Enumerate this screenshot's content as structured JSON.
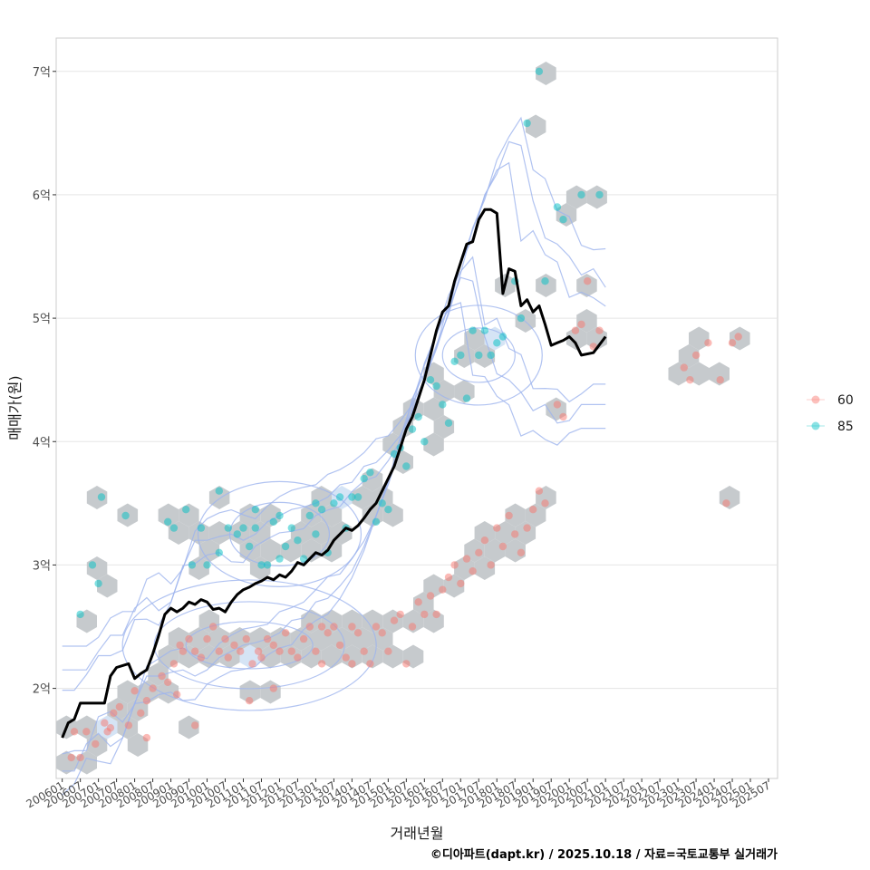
{
  "chart_data": {
    "type": "scatter",
    "xlabel": "거래년월",
    "ylabel": "매매가(원)",
    "caption": "©디아파트(dapt.kr) / 2025.10.18 / 자료=국토교통부 실거래가",
    "x_tick_labels": [
      "200601",
      "200607",
      "200701",
      "200707",
      "200801",
      "200807",
      "200901",
      "200907",
      "201001",
      "201007",
      "201101",
      "201107",
      "201201",
      "201207",
      "201301",
      "201307",
      "201401",
      "201407",
      "201501",
      "201507",
      "201601",
      "201607",
      "201701",
      "201707",
      "201801",
      "201807",
      "201901",
      "201907",
      "202001",
      "202007",
      "202101",
      "202107",
      "202201",
      "202207",
      "202301",
      "202307",
      "202401",
      "202407",
      "202501",
      "202507"
    ],
    "y_ticks": [
      {
        "value": 2,
        "label": "2억"
      },
      {
        "value": 3,
        "label": "3억"
      },
      {
        "value": 4,
        "label": "4억"
      },
      {
        "value": 5,
        "label": "5억"
      },
      {
        "value": 6,
        "label": "6억"
      },
      {
        "value": 7,
        "label": "7억"
      }
    ],
    "x_range_months": [
      -2,
      237
    ],
    "ylim": [
      1.27,
      7.27
    ],
    "y_unit": "억",
    "legend": [
      {
        "name": "60",
        "color": "#F8766D"
      },
      {
        "name": "85",
        "color": "#00BFC4"
      }
    ],
    "legend_position": "right",
    "colors": {
      "area_60": "#F8766D",
      "area_85": "#00BFC4",
      "trend": "#000000",
      "hex": "#c8cbcf",
      "contour": "#9db4ee"
    },
    "series": [
      {
        "name": "60",
        "type": "scatter",
        "points": [
          [
            3,
            1.44
          ],
          [
            4,
            1.65
          ],
          [
            6,
            1.44
          ],
          [
            8,
            1.65
          ],
          [
            11,
            1.55
          ],
          [
            14,
            1.72
          ],
          [
            15,
            1.65
          ],
          [
            17,
            1.8
          ],
          [
            19,
            1.85
          ],
          [
            22,
            1.7
          ],
          [
            24,
            1.98
          ],
          [
            26,
            1.8
          ],
          [
            28,
            1.9
          ],
          [
            30,
            2.0
          ],
          [
            33,
            2.1
          ],
          [
            35,
            2.05
          ],
          [
            37,
            2.2
          ],
          [
            39,
            2.35
          ],
          [
            40,
            2.3
          ],
          [
            42,
            2.4
          ],
          [
            44,
            2.3
          ],
          [
            46,
            2.25
          ],
          [
            48,
            2.4
          ],
          [
            50,
            2.5
          ],
          [
            52,
            2.3
          ],
          [
            54,
            2.4
          ],
          [
            55,
            2.25
          ],
          [
            57,
            2.35
          ],
          [
            59,
            2.3
          ],
          [
            61,
            2.4
          ],
          [
            63,
            2.2
          ],
          [
            65,
            2.3
          ],
          [
            66,
            2.25
          ],
          [
            68,
            2.4
          ],
          [
            70,
            2.35
          ],
          [
            72,
            2.3
          ],
          [
            74,
            2.45
          ],
          [
            76,
            2.3
          ],
          [
            78,
            2.25
          ],
          [
            80,
            2.4
          ],
          [
            82,
            2.5
          ],
          [
            84,
            2.3
          ],
          [
            86,
            2.2
          ],
          [
            88,
            2.45
          ],
          [
            90,
            2.5
          ],
          [
            92,
            2.35
          ],
          [
            94,
            2.25
          ],
          [
            96,
            2.5
          ],
          [
            98,
            2.45
          ],
          [
            100,
            2.3
          ],
          [
            102,
            2.2
          ],
          [
            104,
            2.5
          ],
          [
            106,
            2.45
          ],
          [
            108,
            2.3
          ],
          [
            110,
            2.55
          ],
          [
            112,
            2.6
          ],
          [
            114,
            2.2
          ],
          [
            116,
            2.5
          ],
          [
            118,
            2.7
          ],
          [
            122,
            2.75
          ],
          [
            124,
            2.6
          ],
          [
            126,
            2.8
          ],
          [
            128,
            2.9
          ],
          [
            130,
            3.0
          ],
          [
            132,
            2.85
          ],
          [
            134,
            3.05
          ],
          [
            136,
            2.95
          ],
          [
            138,
            3.1
          ],
          [
            140,
            3.2
          ],
          [
            142,
            3.0
          ],
          [
            144,
            3.3
          ],
          [
            146,
            3.15
          ],
          [
            148,
            3.4
          ],
          [
            150,
            3.25
          ],
          [
            152,
            3.1
          ],
          [
            154,
            3.3
          ],
          [
            156,
            3.45
          ],
          [
            158,
            3.6
          ],
          [
            160,
            3.5
          ],
          [
            164,
            4.3
          ],
          [
            166,
            4.2
          ],
          [
            170,
            4.9
          ],
          [
            172,
            4.95
          ],
          [
            174,
            5.3
          ],
          [
            178,
            4.9
          ],
          [
            206,
            4.6
          ],
          [
            208,
            4.5
          ],
          [
            210,
            4.7
          ],
          [
            214,
            4.8
          ],
          [
            218,
            4.5
          ],
          [
            220,
            3.5
          ],
          [
            222,
            4.8
          ],
          [
            224,
            4.85
          ],
          [
            44,
            1.7
          ],
          [
            62,
            1.9
          ],
          [
            70,
            2.0
          ],
          [
            38,
            1.95
          ],
          [
            28,
            1.6
          ],
          [
            16,
            1.68
          ],
          [
            120,
            2.6
          ],
          [
            96,
            2.2
          ],
          [
            86,
            2.5
          ],
          [
            176,
            4.77
          ]
        ]
      },
      {
        "name": "85",
        "type": "scatter",
        "points": [
          [
            6,
            2.6
          ],
          [
            10,
            3.0
          ],
          [
            12,
            2.85
          ],
          [
            13,
            3.55
          ],
          [
            21,
            3.4
          ],
          [
            35,
            3.35
          ],
          [
            37,
            3.3
          ],
          [
            41,
            3.45
          ],
          [
            43,
            3.0
          ],
          [
            46,
            3.3
          ],
          [
            52,
            3.1
          ],
          [
            55,
            3.3
          ],
          [
            58,
            3.25
          ],
          [
            60,
            3.3
          ],
          [
            62,
            3.15
          ],
          [
            64,
            3.3
          ],
          [
            68,
            3.0
          ],
          [
            70,
            3.35
          ],
          [
            72,
            3.4
          ],
          [
            74,
            3.15
          ],
          [
            76,
            3.3
          ],
          [
            78,
            3.2
          ],
          [
            80,
            3.05
          ],
          [
            82,
            3.4
          ],
          [
            84,
            3.25
          ],
          [
            86,
            3.45
          ],
          [
            88,
            3.1
          ],
          [
            90,
            3.5
          ],
          [
            92,
            3.55
          ],
          [
            94,
            3.3
          ],
          [
            96,
            3.55
          ],
          [
            100,
            3.7
          ],
          [
            102,
            3.75
          ],
          [
            106,
            3.5
          ],
          [
            110,
            3.9
          ],
          [
            112,
            3.95
          ],
          [
            114,
            3.8
          ],
          [
            116,
            4.1
          ],
          [
            118,
            4.2
          ],
          [
            122,
            4.5
          ],
          [
            124,
            4.45
          ],
          [
            126,
            4.3
          ],
          [
            130,
            4.65
          ],
          [
            132,
            4.7
          ],
          [
            134,
            4.35
          ],
          [
            136,
            4.9
          ],
          [
            138,
            4.7
          ],
          [
            140,
            4.9
          ],
          [
            142,
            4.7
          ],
          [
            144,
            4.8
          ],
          [
            146,
            4.85
          ],
          [
            150,
            5.3
          ],
          [
            152,
            5.0
          ],
          [
            154,
            6.58
          ],
          [
            158,
            7.0
          ],
          [
            164,
            5.9
          ],
          [
            166,
            5.8
          ],
          [
            172,
            6.0
          ],
          [
            178,
            6.0
          ],
          [
            64,
            3.45
          ],
          [
            66,
            3.0
          ],
          [
            52,
            3.6
          ],
          [
            48,
            3.0
          ],
          [
            104,
            3.35
          ],
          [
            108,
            3.45
          ],
          [
            120,
            4.0
          ],
          [
            128,
            4.15
          ],
          [
            160,
            5.3
          ],
          [
            84,
            3.5
          ],
          [
            98,
            3.55
          ],
          [
            72,
            3.05
          ]
        ]
      },
      {
        "name": "median trend",
        "type": "line",
        "points": [
          [
            0,
            1.6
          ],
          [
            2,
            1.72
          ],
          [
            4,
            1.75
          ],
          [
            6,
            1.88
          ],
          [
            10,
            1.88
          ],
          [
            14,
            1.88
          ],
          [
            16,
            2.1
          ],
          [
            18,
            2.17
          ],
          [
            22,
            2.2
          ],
          [
            24,
            2.08
          ],
          [
            26,
            2.12
          ],
          [
            28,
            2.15
          ],
          [
            30,
            2.28
          ],
          [
            32,
            2.43
          ],
          [
            34,
            2.6
          ],
          [
            36,
            2.65
          ],
          [
            38,
            2.62
          ],
          [
            40,
            2.65
          ],
          [
            42,
            2.7
          ],
          [
            44,
            2.68
          ],
          [
            46,
            2.72
          ],
          [
            48,
            2.7
          ],
          [
            50,
            2.64
          ],
          [
            52,
            2.65
          ],
          [
            54,
            2.62
          ],
          [
            56,
            2.7
          ],
          [
            58,
            2.76
          ],
          [
            60,
            2.8
          ],
          [
            62,
            2.82
          ],
          [
            64,
            2.85
          ],
          [
            66,
            2.87
          ],
          [
            68,
            2.9
          ],
          [
            70,
            2.88
          ],
          [
            72,
            2.92
          ],
          [
            74,
            2.9
          ],
          [
            76,
            2.95
          ],
          [
            78,
            3.02
          ],
          [
            80,
            3.0
          ],
          [
            82,
            3.05
          ],
          [
            84,
            3.1
          ],
          [
            86,
            3.08
          ],
          [
            88,
            3.12
          ],
          [
            90,
            3.2
          ],
          [
            92,
            3.25
          ],
          [
            94,
            3.3
          ],
          [
            96,
            3.28
          ],
          [
            98,
            3.32
          ],
          [
            100,
            3.38
          ],
          [
            102,
            3.45
          ],
          [
            104,
            3.5
          ],
          [
            106,
            3.6
          ],
          [
            108,
            3.7
          ],
          [
            110,
            3.8
          ],
          [
            112,
            3.95
          ],
          [
            114,
            4.1
          ],
          [
            116,
            4.2
          ],
          [
            118,
            4.35
          ],
          [
            120,
            4.5
          ],
          [
            122,
            4.7
          ],
          [
            124,
            4.9
          ],
          [
            126,
            5.05
          ],
          [
            128,
            5.1
          ],
          [
            130,
            5.3
          ],
          [
            132,
            5.45
          ],
          [
            134,
            5.6
          ],
          [
            136,
            5.62
          ],
          [
            138,
            5.8
          ],
          [
            140,
            5.88
          ],
          [
            142,
            5.88
          ],
          [
            144,
            5.85
          ],
          [
            146,
            5.2
          ],
          [
            148,
            5.4
          ],
          [
            150,
            5.38
          ],
          [
            152,
            5.1
          ],
          [
            154,
            5.15
          ],
          [
            156,
            5.05
          ],
          [
            158,
            5.1
          ],
          [
            160,
            4.95
          ],
          [
            162,
            4.78
          ],
          [
            164,
            4.8
          ],
          [
            166,
            4.82
          ],
          [
            168,
            4.85
          ],
          [
            170,
            4.8
          ],
          [
            172,
            4.7
          ],
          [
            176,
            4.72
          ],
          [
            180,
            4.85
          ]
        ]
      }
    ],
    "notes": "x values in months since 2006-01; y values in 억 원"
  }
}
